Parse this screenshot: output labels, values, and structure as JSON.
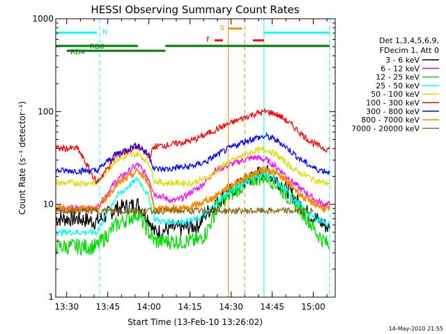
{
  "chart_data": {
    "type": "line",
    "title": "HESSI Observing Summary Count Rates",
    "xlabel": "Start Time (13-Feb-10 13:26:02)",
    "ylabel": "Count Rate (s⁻¹ detector⁻¹)",
    "x_range_minutes_of_day": [
      806,
      908
    ],
    "y_scale": "log",
    "ylim": [
      1,
      1000
    ],
    "x_tick_labels": [
      "13:30",
      "13:45",
      "14:00",
      "14:15",
      "14:30",
      "14:45",
      "15:00"
    ],
    "x_tick_minutes_of_day": [
      810,
      825,
      840,
      855,
      870,
      885,
      900
    ],
    "y_tick_labels": [
      "1",
      "10",
      "100",
      "1000"
    ],
    "y_tick_values": [
      1,
      10,
      100,
      1000
    ],
    "legend_header": [
      "Det 1,3,4,5,6,9,",
      "FDecim 1, Att 0"
    ],
    "timestamp": "14-May-2010 21:55",
    "series": [
      {
        "name": "3 - 6 keV",
        "color": "#000000",
        "x": [
          806,
          814,
          821,
          828,
          836,
          840,
          842,
          845,
          848,
          850,
          853,
          856,
          858,
          861,
          864,
          867,
          870,
          873,
          876,
          879,
          883,
          886,
          889,
          892,
          895,
          898,
          901,
          904,
          906
        ],
        "y": [
          7,
          7,
          6.5,
          9,
          10,
          7,
          5,
          5.2,
          5.5,
          5.5,
          5.6,
          5.8,
          6,
          8,
          10,
          12,
          14,
          16,
          18,
          21,
          22,
          19,
          16,
          13,
          10,
          8,
          7,
          6,
          5.5
        ]
      },
      {
        "name": "6 - 12 keV",
        "color": "#ff00ff",
        "x": [
          806,
          814,
          821,
          828,
          836,
          840,
          842,
          845,
          848,
          850,
          853,
          856,
          858,
          861,
          864,
          867,
          870,
          873,
          876,
          879,
          883,
          886,
          889,
          892,
          895,
          898,
          901,
          904,
          906
        ],
        "y": [
          9,
          9,
          9,
          18,
          27,
          19,
          13,
          12,
          11,
          11,
          12,
          14,
          15,
          18,
          23,
          25,
          27,
          29,
          31,
          32,
          30,
          26,
          22,
          18,
          15,
          13,
          11,
          10,
          10
        ]
      },
      {
        "name": "12 - 25 keV",
        "color": "#00dd00",
        "x": [
          806,
          814,
          821,
          828,
          836,
          840,
          842,
          845,
          848,
          850,
          853,
          856,
          858,
          861,
          864,
          867,
          870,
          873,
          876,
          879,
          883,
          886,
          889,
          892,
          895,
          898,
          901,
          904,
          906
        ],
        "y": [
          3.5,
          3.5,
          3.5,
          6,
          8,
          5,
          4,
          4,
          4,
          4,
          4,
          4,
          4,
          5,
          8,
          11,
          13,
          15,
          17,
          19,
          20,
          17,
          14,
          11,
          9,
          7,
          5,
          4,
          3.5
        ]
      },
      {
        "name": "25 - 50 keV",
        "color": "#00ffff",
        "x": [
          806,
          814,
          821,
          828,
          836,
          840,
          842,
          845,
          848,
          850,
          853,
          856,
          858,
          861,
          864,
          867,
          870,
          873,
          876,
          879,
          883,
          886,
          889,
          892,
          895,
          898,
          901,
          904,
          906
        ],
        "y": [
          5,
          5,
          5,
          12,
          19,
          12,
          7,
          6.5,
          6.5,
          6.5,
          6.5,
          6.7,
          7,
          8,
          10,
          12,
          14,
          16,
          18,
          20,
          21,
          18,
          15,
          12,
          10,
          8,
          7,
          6.5,
          6
        ]
      },
      {
        "name": "50 - 100 keV",
        "color": "#dddd00",
        "x": [
          806,
          814,
          821,
          828,
          836,
          840,
          842,
          845,
          848,
          850,
          853,
          856,
          858,
          861,
          864,
          867,
          870,
          873,
          876,
          879,
          883,
          886,
          889,
          892,
          895,
          898,
          901,
          904,
          906
        ],
        "y": [
          17,
          17,
          17,
          30,
          35,
          28,
          18,
          17,
          17,
          17,
          17,
          17,
          18,
          19,
          22,
          26,
          29,
          32,
          35,
          38,
          39,
          35,
          30,
          25,
          22,
          20,
          18,
          17,
          17
        ]
      },
      {
        "name": "100 - 300 keV",
        "color": "#ff0000",
        "x": [
          806,
          814,
          821,
          828,
          836,
          840,
          842,
          845,
          848,
          850,
          853,
          856,
          858,
          861,
          864,
          867,
          870,
          873,
          876,
          879,
          883,
          886,
          889,
          892,
          895,
          898,
          901,
          904,
          906
        ],
        "y": [
          40,
          40,
          17,
          33,
          42,
          32,
          42,
          43,
          44,
          45,
          47,
          49,
          52,
          57,
          63,
          69,
          75,
          82,
          89,
          95,
          100,
          95,
          85,
          72,
          60,
          50,
          44,
          40,
          39
        ]
      },
      {
        "name": "300 - 800 keV",
        "color": "#0000ff",
        "x": [
          806,
          814,
          821,
          828,
          836,
          840,
          842,
          845,
          848,
          850,
          853,
          856,
          858,
          861,
          864,
          867,
          870,
          873,
          876,
          879,
          883,
          886,
          889,
          892,
          895,
          898,
          901,
          904,
          906
        ],
        "y": [
          23,
          23,
          23,
          35,
          44,
          34,
          24,
          24,
          24,
          25,
          25,
          26,
          27,
          29,
          33,
          37,
          41,
          45,
          49,
          52,
          54,
          50,
          44,
          37,
          31,
          27,
          24,
          23,
          22
        ]
      },
      {
        "name": "800 - 7000 keV",
        "color": "#ff8800",
        "x": [
          806,
          814,
          821,
          828,
          836,
          840,
          842,
          845,
          848,
          850,
          853,
          856,
          858,
          861,
          864,
          867,
          870,
          873,
          876,
          879,
          883,
          886,
          889,
          892,
          895,
          898,
          901,
          904,
          906
        ],
        "y": [
          9,
          9,
          9,
          16,
          23,
          17,
          9,
          9,
          9,
          9,
          9,
          9.5,
          10,
          11,
          12,
          14,
          16,
          18,
          20,
          22,
          24,
          22,
          19,
          16,
          13,
          11,
          10,
          9,
          9
        ]
      },
      {
        "name": "7000 - 20000 keV",
        "color": "#8b6914",
        "x": [
          806,
          900
        ],
        "y": [
          8.5,
          8.5
        ]
      }
    ],
    "vertical_lines": [
      {
        "minute": 806,
        "color": "#00ffff",
        "style": "solid"
      },
      {
        "minute": 822,
        "color": "#00ffff",
        "style": "dashed"
      },
      {
        "minute": 869,
        "color": "#ff8800",
        "style": "solid"
      },
      {
        "minute": 875,
        "color": "#ff8800",
        "style": "dashed"
      },
      {
        "minute": 882,
        "color": "#00ffff",
        "style": "solid"
      },
      {
        "minute": 906,
        "color": "#00ffff",
        "style": "dashed"
      }
    ],
    "flags": [
      {
        "label": "N",
        "color": "#00ffff",
        "segments": [
          [
            806,
            821
          ],
          [
            882,
            906
          ]
        ],
        "level_px": 47
      },
      {
        "label": "RD0",
        "color": "#007700",
        "segments": [
          [
            806,
            836
          ],
          [
            846,
            906
          ]
        ],
        "level_px": 66
      },
      {
        "label": "RD4",
        "color": "#007700",
        "segments": [
          [
            810,
            846
          ]
        ],
        "level_px": 73
      },
      {
        "label": "S",
        "color": "#ff8800",
        "segments": [
          [
            869,
            874
          ]
        ],
        "level_px": 41
      },
      {
        "label": "F",
        "color": "#ff0000",
        "segments": [
          [
            864,
            867
          ],
          [
            878,
            882
          ]
        ],
        "level_px": 58
      }
    ]
  }
}
